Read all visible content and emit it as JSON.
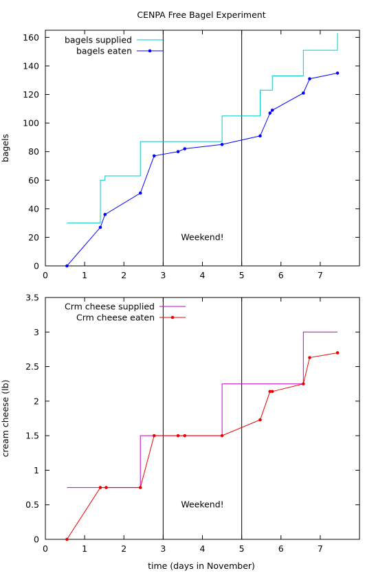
{
  "title": "CENPA Free Bagel Experiment",
  "xlabel": "time (days in November)",
  "chart_data": [
    {
      "type": "line",
      "ylabel": "bagels",
      "xlim": [
        0,
        8
      ],
      "ylim": [
        0,
        165
      ],
      "x_ticks": [
        0,
        1,
        2,
        3,
        4,
        5,
        6,
        7
      ],
      "x_tick_labels": [
        "0",
        "1",
        "2",
        "3",
        "4",
        "5",
        "6",
        "7"
      ],
      "y_ticks": [
        0,
        20,
        40,
        60,
        80,
        100,
        120,
        140,
        160
      ],
      "y_tick_labels": [
        "0",
        "20",
        "40",
        "60",
        "80",
        "100",
        "120",
        "140",
        "160"
      ],
      "vlines": [
        3,
        5
      ],
      "annotation": {
        "text": "Weekend!",
        "x": 4.0,
        "y": 20
      },
      "legend_position": "top-left",
      "series": [
        {
          "name": "bagels supplied",
          "style": "step",
          "color": "#00c8c8",
          "points": [
            [
              0.55,
              30
            ],
            [
              1.4,
              30
            ],
            [
              1.4,
              60
            ],
            [
              1.52,
              60
            ],
            [
              1.52,
              63
            ],
            [
              2.42,
              63
            ],
            [
              2.42,
              87
            ],
            [
              4.5,
              87
            ],
            [
              4.5,
              105
            ],
            [
              5.47,
              105
            ],
            [
              5.47,
              123
            ],
            [
              5.78,
              123
            ],
            [
              5.78,
              133
            ],
            [
              6.57,
              133
            ],
            [
              6.57,
              151
            ],
            [
              7.44,
              151
            ],
            [
              7.44,
              163
            ]
          ]
        },
        {
          "name": "bagels eaten",
          "style": "linepoints",
          "color": "#0000ff",
          "points": [
            [
              0.55,
              0
            ],
            [
              1.4,
              27
            ],
            [
              1.52,
              36
            ],
            [
              2.42,
              51
            ],
            [
              2.77,
              77
            ],
            [
              3.38,
              80
            ],
            [
              3.55,
              82
            ],
            [
              4.5,
              85
            ],
            [
              5.47,
              91
            ],
            [
              5.72,
              107
            ],
            [
              5.78,
              109
            ],
            [
              6.57,
              121
            ],
            [
              6.73,
              131
            ],
            [
              7.44,
              135
            ]
          ]
        }
      ]
    },
    {
      "type": "line",
      "ylabel": "cream cheese (lb)",
      "xlim": [
        0,
        8
      ],
      "ylim": [
        0,
        3.5
      ],
      "x_ticks": [
        0,
        1,
        2,
        3,
        4,
        5,
        6,
        7
      ],
      "x_tick_labels": [
        "0",
        "1",
        "2",
        "3",
        "4",
        "5",
        "6",
        "7"
      ],
      "y_ticks": [
        0,
        0.5,
        1,
        1.5,
        2,
        2.5,
        3,
        3.5
      ],
      "y_tick_labels": [
        "0",
        "0.5",
        "1",
        "1.5",
        "2",
        "2.5",
        "3",
        "3.5"
      ],
      "vlines": [
        3,
        5
      ],
      "annotation": {
        "text": "Weekend!",
        "x": 4.0,
        "y": 0.5
      },
      "legend_position": "top-left",
      "series": [
        {
          "name": "Crm cheese supplied",
          "style": "step",
          "color": "#c000c0",
          "points": [
            [
              0.55,
              0.75
            ],
            [
              2.42,
              0.75
            ],
            [
              2.42,
              1.5
            ],
            [
              4.5,
              1.5
            ],
            [
              4.5,
              2.25
            ],
            [
              6.57,
              2.25
            ],
            [
              6.57,
              3.0
            ],
            [
              7.44,
              3.0
            ]
          ]
        },
        {
          "name": "Crm cheese eaten",
          "style": "linepoints",
          "color": "#ee0000",
          "points": [
            [
              0.55,
              0
            ],
            [
              1.4,
              0.75
            ],
            [
              1.55,
              0.75
            ],
            [
              2.42,
              0.75
            ],
            [
              2.77,
              1.5
            ],
            [
              3.38,
              1.5
            ],
            [
              3.55,
              1.5
            ],
            [
              4.5,
              1.5
            ],
            [
              5.47,
              1.73
            ],
            [
              5.72,
              2.14
            ],
            [
              5.78,
              2.14
            ],
            [
              6.57,
              2.25
            ],
            [
              6.73,
              2.63
            ],
            [
              7.44,
              2.7
            ]
          ]
        }
      ]
    }
  ]
}
